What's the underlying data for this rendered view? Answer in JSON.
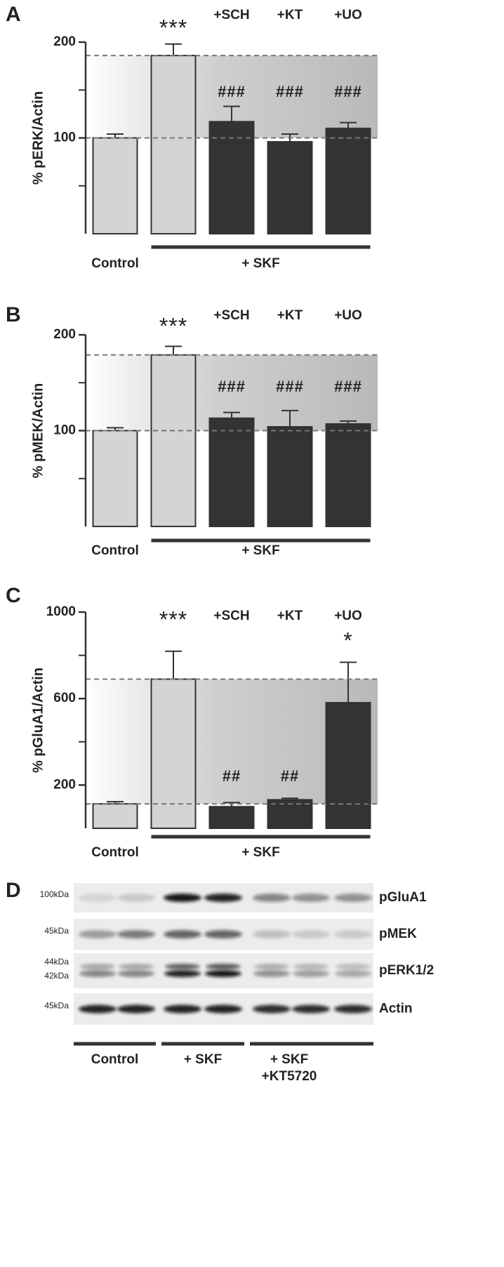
{
  "chart_data": [
    {
      "type": "bar",
      "panel": "A",
      "ylabel": "% pERK/Actin",
      "categories": [
        "Control",
        null,
        "+SCH",
        "+KT",
        "+UO"
      ],
      "group_label": "+ SKF",
      "values": [
        100,
        186,
        117,
        96,
        110
      ],
      "errors": [
        4,
        12,
        16,
        8,
        6
      ],
      "colors": [
        "#d4d4d4",
        "#d4d4d4",
        "#333333",
        "#333333",
        "#333333"
      ],
      "annotations": [
        null,
        "***",
        "###",
        "###",
        "###"
      ],
      "ylim": [
        0,
        200
      ],
      "yticks": [
        100,
        200
      ],
      "minor_yticks": [
        50,
        150
      ]
    },
    {
      "type": "bar",
      "panel": "B",
      "ylabel": "% pMEK/Actin",
      "categories": [
        "Control",
        null,
        "+SCH",
        "+KT",
        "+UO"
      ],
      "group_label": "+ SKF",
      "values": [
        100,
        179,
        113,
        104,
        107
      ],
      "errors": [
        3,
        9,
        6,
        17,
        3
      ],
      "colors": [
        "#d4d4d4",
        "#d4d4d4",
        "#333333",
        "#333333",
        "#333333"
      ],
      "annotations": [
        null,
        "***",
        "###",
        "###",
        "###"
      ],
      "ylim": [
        0,
        200
      ],
      "yticks": [
        100,
        200
      ],
      "minor_yticks": [
        50,
        150
      ]
    },
    {
      "type": "bar",
      "panel": "C",
      "ylabel": "% pGluA1/Actin",
      "categories": [
        "Control",
        null,
        "+SCH",
        "+KT",
        "+UO"
      ],
      "group_label": "+ SKF",
      "values": [
        113,
        690,
        100,
        132,
        581
      ],
      "errors": [
        10,
        129,
        19,
        7,
        187
      ],
      "colors": [
        "#d4d4d4",
        "#d4d4d4",
        "#333333",
        "#333333",
        "#333333"
      ],
      "annotations": [
        null,
        "***",
        "##",
        "##",
        "*"
      ],
      "ylim": [
        0,
        1000
      ],
      "yticks": [
        200,
        600,
        1000
      ],
      "minor_yticks": [
        400,
        800
      ]
    }
  ],
  "blot": {
    "panel": "D",
    "rows": [
      {
        "name": "pGluA1",
        "markers": [
          "100kDa"
        ]
      },
      {
        "name": "pMEK",
        "markers": [
          "45kDa"
        ]
      },
      {
        "name": "pERK1/2",
        "markers": [
          "44kDa",
          "42kDa"
        ]
      },
      {
        "name": "Actin",
        "markers": [
          "45kDa"
        ]
      }
    ],
    "groups": [
      [
        "Control"
      ],
      [
        "+ SKF"
      ],
      [
        "+ SKF",
        "+KT5720"
      ]
    ]
  }
}
